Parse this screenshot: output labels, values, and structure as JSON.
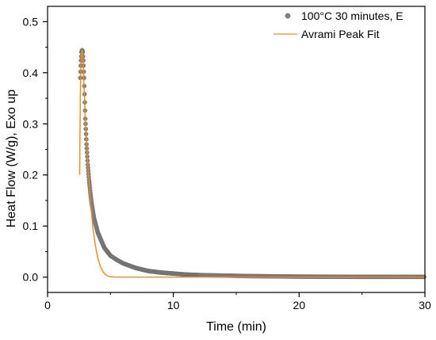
{
  "chart_data": {
    "type": "scatter",
    "xlabel": "Time (min)",
    "ylabel": "Heat Flow (W/g), Exo up",
    "xlim": [
      0,
      30
    ],
    "ylim": [
      -0.03,
      0.53
    ],
    "x_ticks": [
      0,
      10,
      20,
      30
    ],
    "x_tick_labels": [
      "0",
      "10",
      "20",
      "30"
    ],
    "y_ticks": [
      0.0,
      0.1,
      0.2,
      0.3,
      0.4,
      0.5
    ],
    "y_tick_labels": [
      "0.0",
      "0.1",
      "0.2",
      "0.3",
      "0.4",
      "0.5"
    ],
    "legend_position": "top-right",
    "grid": false,
    "series": [
      {
        "name": "100°C 30 minutes, E",
        "kind": "scatter",
        "color": "#808080",
        "marker_edge": "#6b6b6b",
        "x": [
          2.6,
          2.65,
          2.7,
          2.75,
          2.8,
          2.85,
          2.9,
          2.95,
          3.0,
          3.1,
          3.2,
          3.3,
          3.4,
          3.5,
          3.7,
          4.0,
          4.5,
          5.0,
          5.5,
          6.0,
          7.0,
          8.0,
          9.0,
          10.0,
          11.0,
          12.0,
          14.0,
          16.0,
          18.0,
          20.0,
          22.0,
          25.0,
          28.0,
          30.0
        ],
        "y": [
          0.39,
          0.42,
          0.44,
          0.445,
          0.44,
          0.42,
          0.39,
          0.35,
          0.31,
          0.26,
          0.22,
          0.19,
          0.165,
          0.145,
          0.115,
          0.087,
          0.058,
          0.042,
          0.034,
          0.027,
          0.018,
          0.012,
          0.009,
          0.007,
          0.005,
          0.004,
          0.003,
          0.002,
          0.0015,
          0.001,
          0.0008,
          0.0005,
          0.0005,
          0.0005
        ]
      },
      {
        "name": "Avrami Peak Fit",
        "kind": "line",
        "color": "#f28c1e",
        "x": [
          2.55,
          2.6,
          2.65,
          2.7,
          2.75,
          2.8,
          2.85,
          2.9,
          3.0,
          3.2,
          3.4,
          3.6,
          3.8,
          4.0,
          4.2,
          4.4,
          4.6,
          4.8,
          5.0,
          5.3,
          6.0,
          8.0,
          30.0
        ],
        "y": [
          0.2,
          0.34,
          0.41,
          0.44,
          0.445,
          0.43,
          0.405,
          0.375,
          0.31,
          0.22,
          0.15,
          0.098,
          0.062,
          0.037,
          0.021,
          0.011,
          0.005,
          0.002,
          0.0008,
          0.0002,
          0.0,
          0.0,
          0.0
        ]
      }
    ]
  }
}
